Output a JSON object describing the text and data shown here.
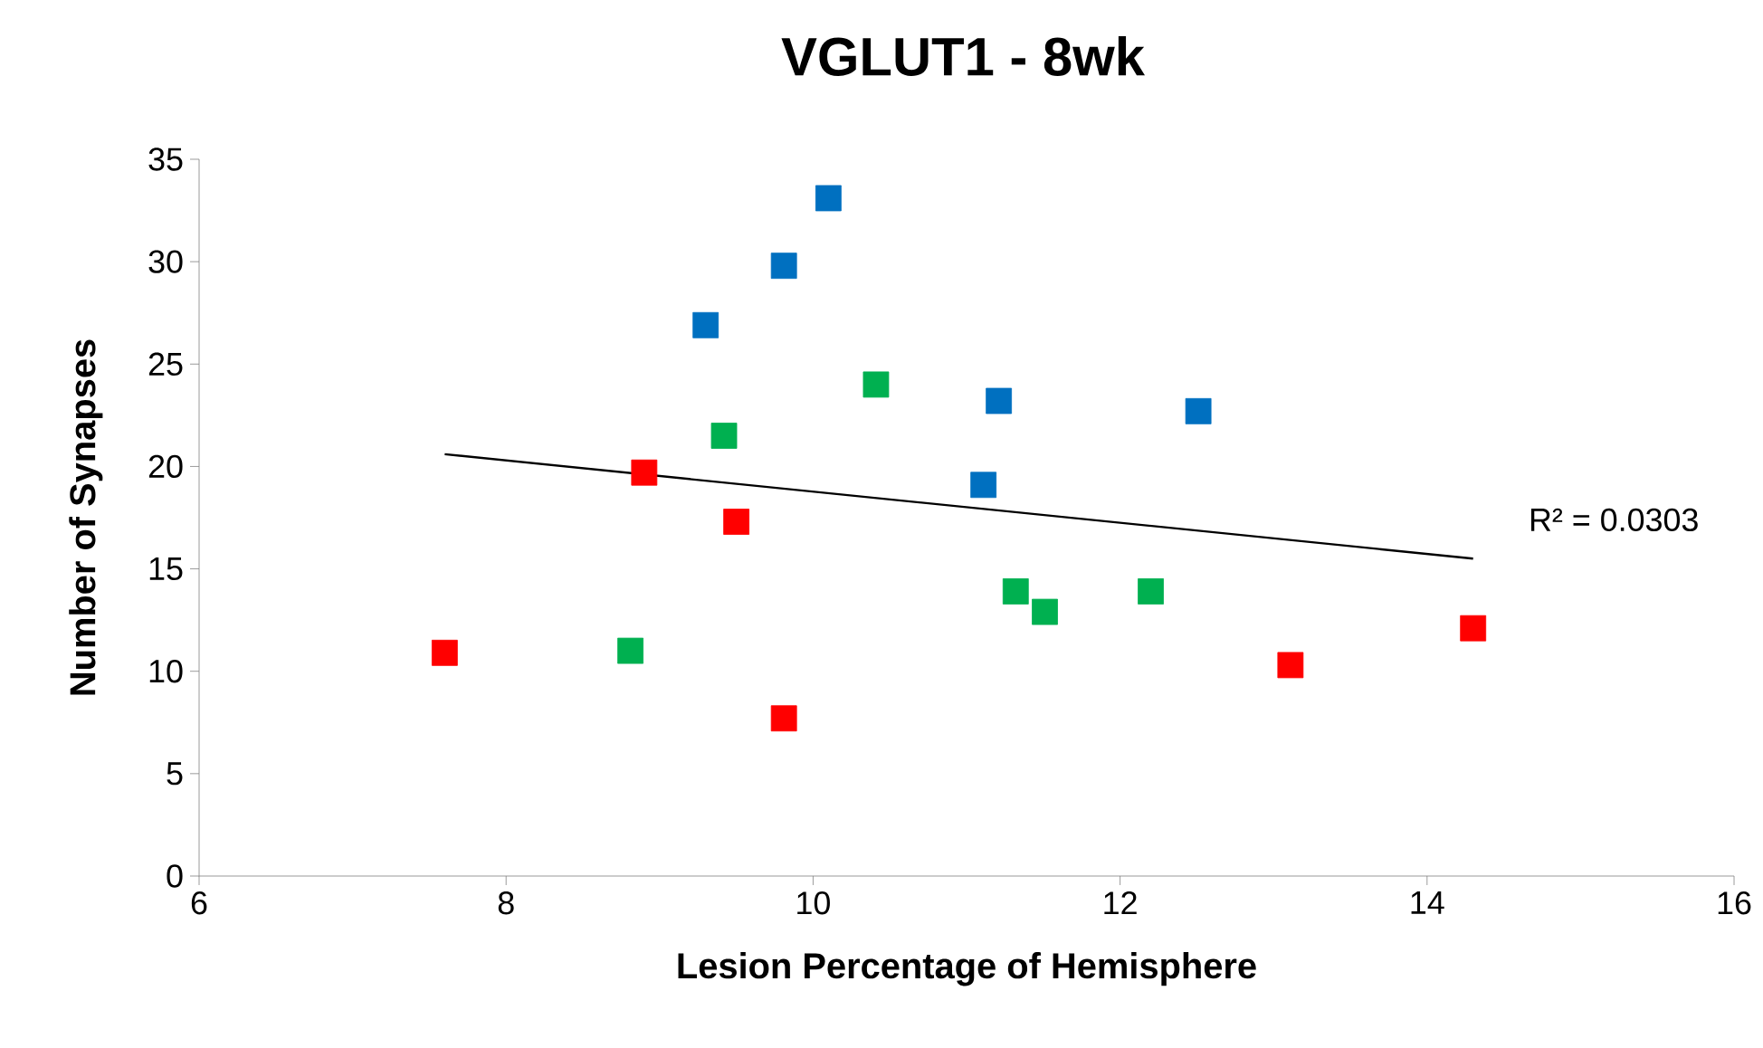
{
  "chart_data": {
    "type": "scatter",
    "title": "VGLUT1 - 8wk",
    "xlabel": "Lesion Percentage of Hemisphere",
    "ylabel": "Number of Synapses",
    "xlim": [
      6,
      16
    ],
    "ylim": [
      0,
      35
    ],
    "xticks": [
      6,
      8,
      10,
      12,
      14,
      16
    ],
    "yticks": [
      0,
      5,
      10,
      15,
      20,
      25,
      30,
      35
    ],
    "grid": false,
    "marker": "square",
    "series": [
      {
        "color": "#0070c0",
        "x": [
          9.3,
          9.81,
          10.1,
          11.11,
          11.21,
          12.51
        ],
        "values": [
          26.9,
          29.8,
          33.1,
          19.1,
          23.2,
          22.7
        ]
      },
      {
        "color": "#00b050",
        "x": [
          9.42,
          10.41,
          8.81,
          11.32,
          11.51,
          12.2
        ],
        "values": [
          21.5,
          24.0,
          11.0,
          13.9,
          12.9,
          13.9
        ]
      },
      {
        "color": "#ff0000",
        "x": [
          7.6,
          8.9,
          9.5,
          9.81,
          13.11,
          14.3
        ],
        "values": [
          10.9,
          19.7,
          17.3,
          7.7,
          10.3,
          12.1
        ]
      },
      {
        "type": "line",
        "color": "#000000",
        "marker": "none",
        "x": [
          7.6,
          14.3
        ],
        "values": [
          20.6,
          15.5
        ]
      }
    ],
    "annotations": [
      "R² = 0.0303"
    ]
  }
}
